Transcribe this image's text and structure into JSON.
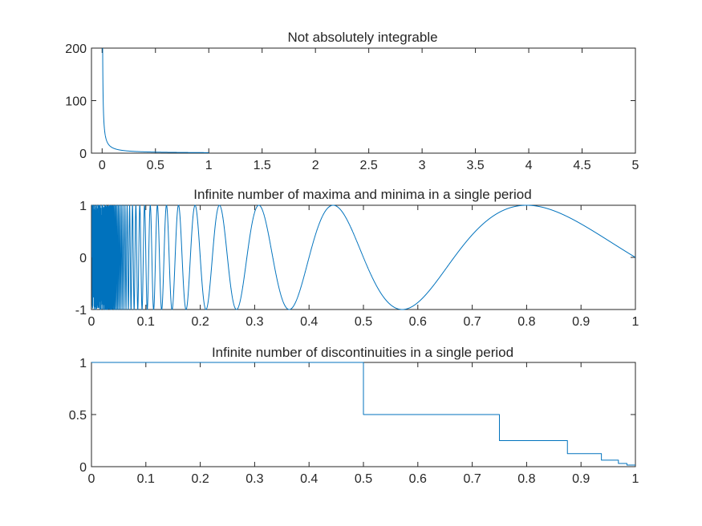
{
  "chart_data": [
    {
      "type": "line",
      "title": "Not absolutely integrable",
      "xlim": [
        0,
        5
      ],
      "ylim": [
        0,
        200
      ],
      "xticks": [
        "0",
        "0.5",
        "1",
        "1.5",
        "2",
        "2.5",
        "3",
        "3.5",
        "4",
        "4.5",
        "5"
      ],
      "yticks": [
        "0",
        "100",
        "200"
      ],
      "xpad_left": 0.1,
      "color": "#0072BD",
      "series": [
        {
          "function": "1/x",
          "x_range": [
            0.005,
            1
          ]
        }
      ]
    },
    {
      "type": "line",
      "title": "Infinite number of maxima and minima in a single period",
      "xlim": [
        0,
        1
      ],
      "ylim": [
        -1,
        1
      ],
      "xticks": [
        "0",
        "0.1",
        "0.2",
        "0.3",
        "0.4",
        "0.5",
        "0.6",
        "0.7",
        "0.8",
        "0.9",
        "1"
      ],
      "yticks": [
        "-1",
        "0",
        "1"
      ],
      "color": "#0072BD",
      "series": [
        {
          "function": "sin(2*pi/x)",
          "x_range": [
            0.001,
            1
          ]
        }
      ]
    },
    {
      "type": "line",
      "title": "Infinite number of discontinuities in a single period",
      "xlim": [
        0,
        1
      ],
      "ylim": [
        0,
        1
      ],
      "xticks": [
        "0",
        "0.1",
        "0.2",
        "0.3",
        "0.4",
        "0.5",
        "0.6",
        "0.7",
        "0.8",
        "0.9",
        "1"
      ],
      "yticks": [
        "0",
        "0.5",
        "1"
      ],
      "color": "#0072BD",
      "series": [
        {
          "function": "step",
          "x": [
            0,
            0.5,
            0.5,
            0.75,
            0.75,
            0.875,
            0.875,
            0.9375,
            0.9375,
            0.96875,
            0.96875,
            0.984375,
            0.984375,
            1
          ],
          "y": [
            1,
            1,
            0.5,
            0.5,
            0.25,
            0.25,
            0.125,
            0.125,
            0.0625,
            0.0625,
            0.03125,
            0.03125,
            0.015625,
            0.015625
          ]
        }
      ]
    }
  ]
}
